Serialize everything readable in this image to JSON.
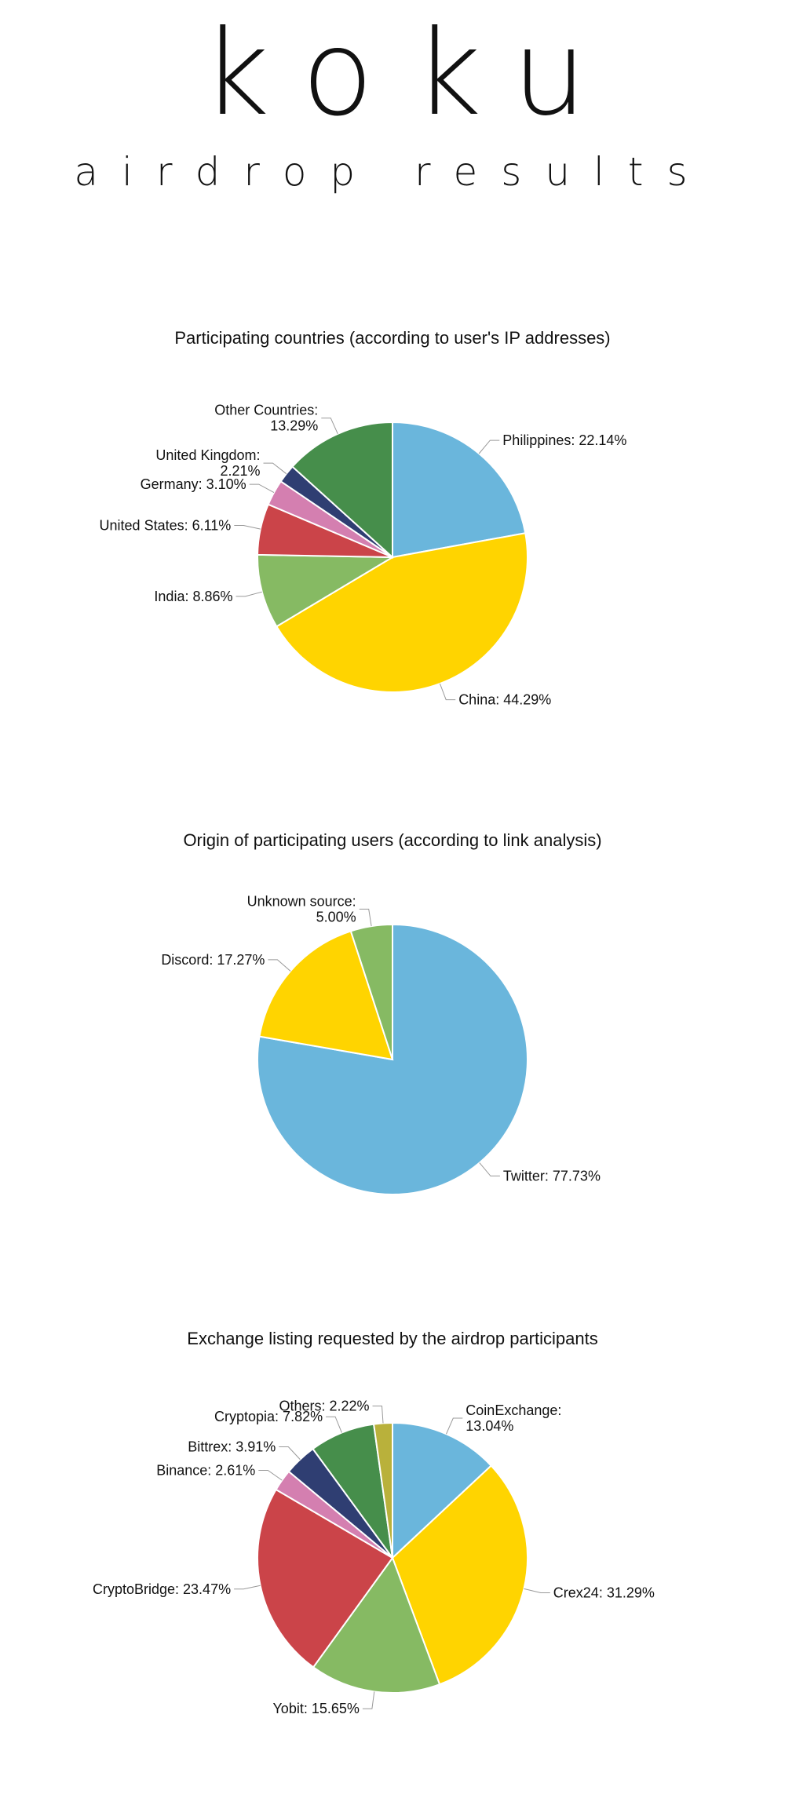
{
  "logo": {
    "letters": [
      "k",
      "o",
      "k",
      "u"
    ],
    "colors": [
      "#1BA1E6",
      "#1A85DA",
      "#4E3FA8",
      "#6E1B7E"
    ]
  },
  "tagline": "airdrop results",
  "chart_data": [
    {
      "type": "pie",
      "title": "Participating countries (according to user's IP addresses)",
      "slices": [
        {
          "name": "Philippines",
          "value": 22.14,
          "label": "Philippines: 22.14%",
          "color": "#6AB6DC"
        },
        {
          "name": "China",
          "value": 44.29,
          "label": "China: 44.29%",
          "color": "#FFD400"
        },
        {
          "name": "India",
          "value": 8.86,
          "label": "India: 8.86%",
          "color": "#86BA63"
        },
        {
          "name": "United States",
          "value": 6.11,
          "label": "United States: 6.11%",
          "color": "#CB4449"
        },
        {
          "name": "Germany",
          "value": 3.1,
          "label": "Germany: 3.10%",
          "color": "#D47FB0"
        },
        {
          "name": "United Kingdom",
          "value": 2.21,
          "label": "United Kingdom:\n2.21%",
          "color": "#2F3E72"
        },
        {
          "name": "Other Countries",
          "value": 13.29,
          "label": "Other Countries:\n13.29%",
          "color": "#468E4B"
        }
      ]
    },
    {
      "type": "pie",
      "title": "Origin of participating users (according to link analysis)",
      "slices": [
        {
          "name": "Twitter",
          "value": 77.73,
          "label": "Twitter: 77.73%",
          "color": "#6AB6DC"
        },
        {
          "name": "Discord",
          "value": 17.27,
          "label": "Discord: 17.27%",
          "color": "#FFD400"
        },
        {
          "name": "Unknown source",
          "value": 5.0,
          "label": "Unknown source:\n5.00%",
          "color": "#86BA63"
        }
      ]
    },
    {
      "type": "pie",
      "title": "Exchange listing requested by the airdrop participants",
      "slices": [
        {
          "name": "CoinExchange",
          "value": 13.04,
          "label": "CoinExchange:\n13.04%",
          "color": "#6AB6DC"
        },
        {
          "name": "Crex24",
          "value": 31.29,
          "label": "Crex24: 31.29%",
          "color": "#FFD400"
        },
        {
          "name": "Yobit",
          "value": 15.65,
          "label": "Yobit: 15.65%",
          "color": "#86BA63"
        },
        {
          "name": "CryptoBridge",
          "value": 23.47,
          "label": "CryptoBridge: 23.47%",
          "color": "#CB4449"
        },
        {
          "name": "Binance",
          "value": 2.61,
          "label": "Binance: 2.61%",
          "color": "#D47FB0"
        },
        {
          "name": "Bittrex",
          "value": 3.91,
          "label": "Bittrex: 3.91%",
          "color": "#2F3E72"
        },
        {
          "name": "Cryptopia",
          "value": 7.82,
          "label": "Cryptopia: 7.82%",
          "color": "#468E4B"
        },
        {
          "name": "Others",
          "value": 2.22,
          "label": "Others: 2.22%",
          "color": "#B9B13B"
        }
      ]
    }
  ]
}
